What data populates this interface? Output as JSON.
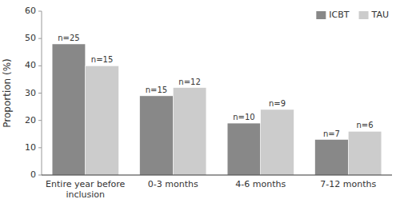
{
  "chart_data": {
    "type": "bar",
    "categories": [
      "Entire year before\ninclusion",
      "0-3 months",
      "4-6 months",
      "7-12 months"
    ],
    "series": [
      {
        "name": "ICBT",
        "color": "#888888",
        "values": [
          48,
          29,
          19,
          13
        ],
        "annotations": [
          "n=25",
          "n=15",
          "n=10",
          "n=7"
        ]
      },
      {
        "name": "TAU",
        "color": "#cccccc",
        "values": [
          40,
          32,
          24,
          16
        ],
        "annotations": [
          "n=15",
          "n=12",
          "n=9",
          "n=6"
        ]
      }
    ],
    "y_label": "Proportion (%)",
    "ylim": [
      0,
      60
    ],
    "yticks": [
      0,
      10,
      20,
      30,
      40,
      50,
      60
    ],
    "grid": false,
    "legend": "upper right"
  }
}
